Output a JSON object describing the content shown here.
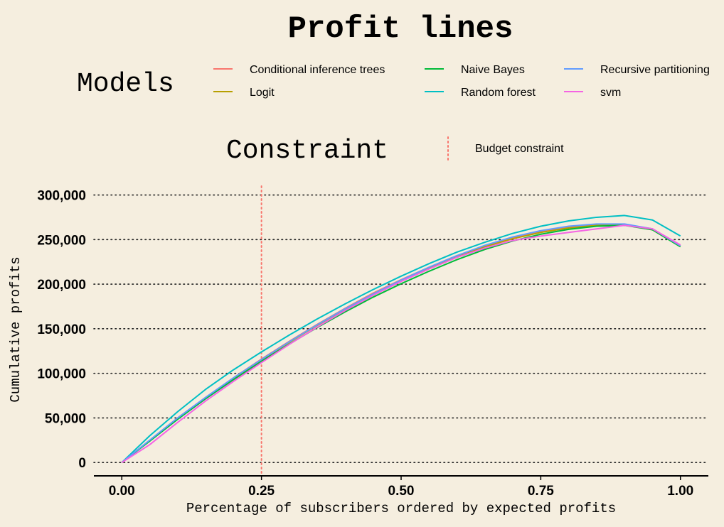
{
  "chart_data": {
    "type": "line",
    "title": "Profit lines",
    "xlabel": "Percentage of subscribers ordered by expected profits",
    "ylabel": "Cumulative profits",
    "xlim": [
      -0.05,
      1.05
    ],
    "ylim": [
      -15000,
      310000
    ],
    "x_ticks": [
      0,
      0.25,
      0.5,
      0.75,
      1.0
    ],
    "x_tick_labels": [
      "0.00",
      "0.25",
      "0.50",
      "0.75",
      "1.00"
    ],
    "y_ticks": [
      0,
      50000,
      100000,
      150000,
      200000,
      250000,
      300000
    ],
    "y_tick_labels": [
      "0",
      "50,000",
      "100,000",
      "150,000",
      "200,000",
      "250,000",
      "300,000"
    ],
    "grid": "horizontal dotted",
    "legend": {
      "title": "Models",
      "placement": "top",
      "entries": [
        "Conditional inference trees",
        "Logit",
        "Naive Bayes",
        "Random forest",
        "Recursive partitioning",
        "svm"
      ]
    },
    "constraint_legend": {
      "title": "Constraint",
      "label": "Budget constraint",
      "color": "#f8766d"
    },
    "budget_constraint_x": 0.25,
    "series": [
      {
        "name": "Conditional inference trees",
        "color": "#f8766d",
        "x": [
          0,
          0.05,
          0.1,
          0.15,
          0.2,
          0.25,
          0.3,
          0.35,
          0.4,
          0.45,
          0.5,
          0.55,
          0.6,
          0.65,
          0.7,
          0.75,
          0.8,
          0.85,
          0.9,
          0.95,
          1.0
        ],
        "y": [
          0,
          25000,
          50000,
          73000,
          95000,
          116000,
          136000,
          155000,
          173000,
          190000,
          205000,
          219000,
          232000,
          243000,
          252000,
          259000,
          264000,
          267000,
          267000,
          262000,
          243000
        ]
      },
      {
        "name": "Logit",
        "color": "#b79f00",
        "x": [
          0,
          0.05,
          0.1,
          0.15,
          0.2,
          0.25,
          0.3,
          0.35,
          0.4,
          0.45,
          0.5,
          0.55,
          0.6,
          0.65,
          0.7,
          0.75,
          0.8,
          0.85,
          0.9,
          0.95,
          1.0
        ],
        "y": [
          0,
          24500,
          49500,
          72500,
          94000,
          115000,
          135000,
          154000,
          172000,
          188500,
          204000,
          218000,
          231000,
          242000,
          251000,
          258000,
          263000,
          266000,
          266500,
          261000,
          242000
        ]
      },
      {
        "name": "Naive Bayes",
        "color": "#00ba38",
        "x": [
          0,
          0.05,
          0.1,
          0.15,
          0.2,
          0.25,
          0.3,
          0.35,
          0.4,
          0.45,
          0.5,
          0.55,
          0.6,
          0.65,
          0.7,
          0.75,
          0.8,
          0.85,
          0.9,
          0.95,
          1.0
        ],
        "y": [
          0,
          24000,
          48500,
          71500,
          93000,
          113500,
          133000,
          151500,
          169000,
          185500,
          200500,
          214500,
          227500,
          239000,
          248500,
          256000,
          261500,
          265000,
          266000,
          261000,
          242000
        ]
      },
      {
        "name": "Random forest",
        "color": "#00bfc4",
        "x": [
          0,
          0.05,
          0.1,
          0.15,
          0.2,
          0.25,
          0.3,
          0.35,
          0.4,
          0.45,
          0.5,
          0.55,
          0.6,
          0.65,
          0.7,
          0.75,
          0.8,
          0.85,
          0.9,
          0.95,
          1.0
        ],
        "y": [
          0,
          30000,
          57000,
          82000,
          104000,
          124000,
          143000,
          161000,
          178000,
          194000,
          209000,
          223000,
          236000,
          247000,
          257000,
          265000,
          271000,
          275000,
          277000,
          272000,
          254000
        ]
      },
      {
        "name": "Recursive partitioning",
        "color": "#619cff",
        "x": [
          0,
          0.05,
          0.1,
          0.15,
          0.2,
          0.25,
          0.3,
          0.35,
          0.4,
          0.45,
          0.5,
          0.55,
          0.6,
          0.65,
          0.7,
          0.75,
          0.8,
          0.85,
          0.9,
          0.95,
          1.0
        ],
        "y": [
          0,
          25000,
          50000,
          73000,
          95000,
          115500,
          135500,
          154500,
          172500,
          189000,
          204500,
          219000,
          232000,
          243500,
          253000,
          260000,
          265000,
          267500,
          267500,
          262000,
          243000
        ]
      },
      {
        "name": "svm",
        "color": "#f564e3",
        "x": [
          0,
          0.05,
          0.1,
          0.15,
          0.2,
          0.25,
          0.3,
          0.35,
          0.4,
          0.45,
          0.5,
          0.55,
          0.6,
          0.65,
          0.7,
          0.75,
          0.8,
          0.85,
          0.9,
          0.95,
          1.0
        ],
        "y": [
          0,
          20000,
          45000,
          69000,
          91000,
          112000,
          132500,
          152000,
          170500,
          187500,
          203000,
          217000,
          230000,
          240500,
          249000,
          254000,
          258000,
          262000,
          266000,
          262000,
          244000
        ]
      }
    ]
  }
}
